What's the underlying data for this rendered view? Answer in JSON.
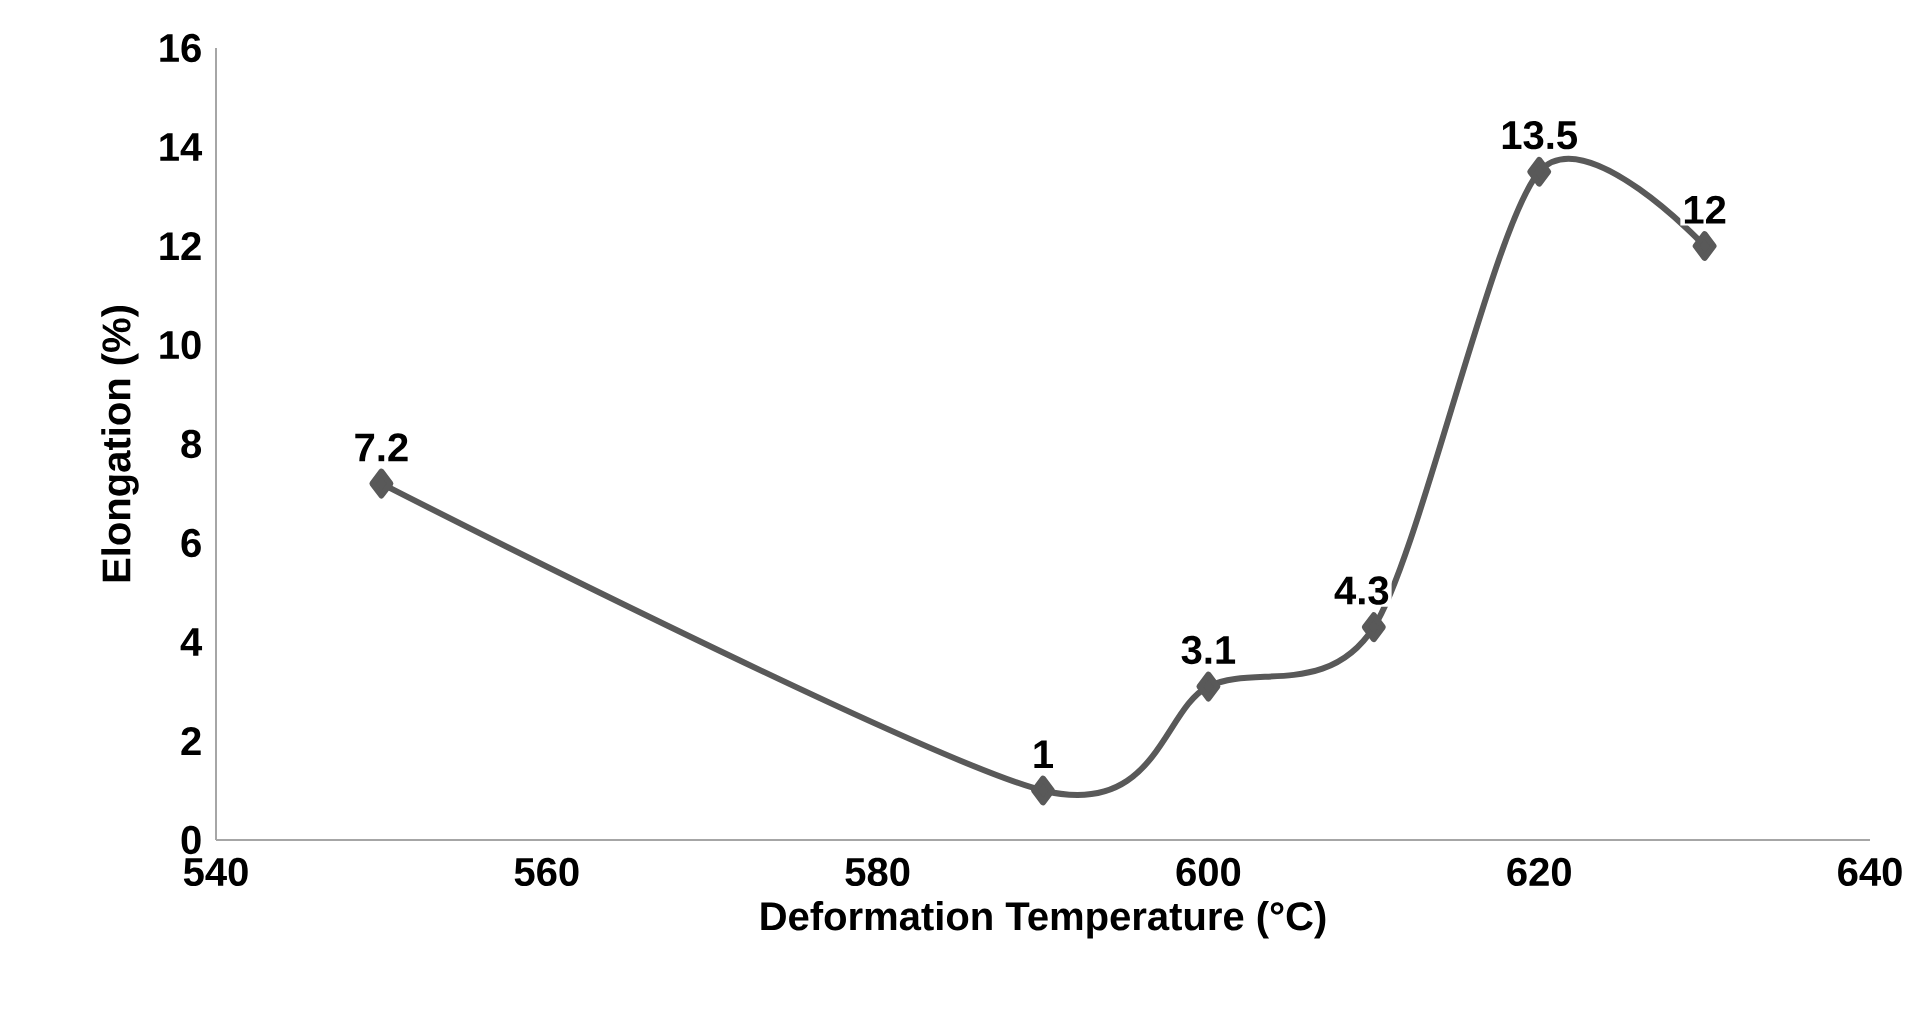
{
  "chart_data": {
    "type": "line",
    "xlabel": "Deformation Temperature (°C)",
    "ylabel": "Elongation (%)",
    "x": [
      550,
      590,
      600,
      610,
      620,
      630
    ],
    "series": [
      {
        "color": "#595959",
        "values": [
          7.2,
          1,
          3.1,
          4.3,
          13.5,
          12
        ]
      }
    ],
    "xlim": [
      540,
      640
    ],
    "xticks": [
      540,
      560,
      580,
      600,
      620,
      640
    ],
    "ylim": [
      0,
      16
    ],
    "yticks": [
      0,
      2,
      4,
      6,
      8,
      10,
      12,
      14,
      16
    ],
    "data_labels": true,
    "grid": false,
    "marker": "diamond",
    "line_style": "solid"
  }
}
